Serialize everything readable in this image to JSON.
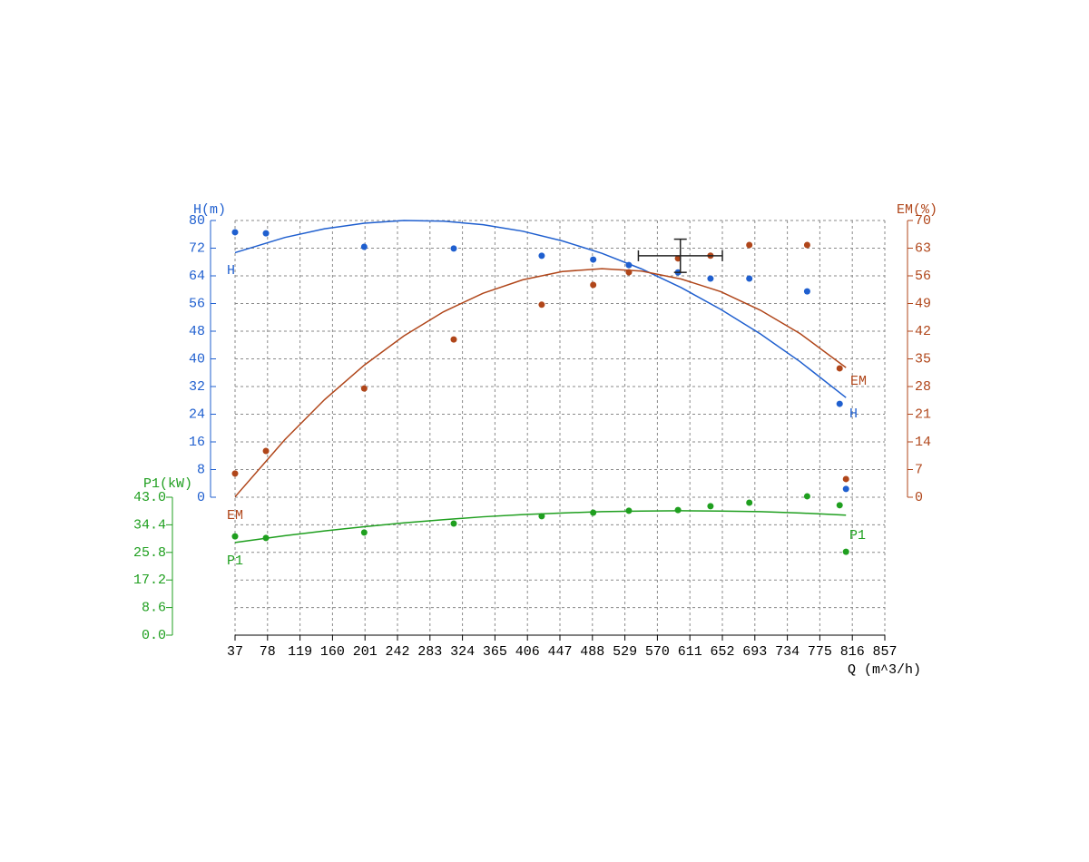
{
  "chart_data": {
    "type": "line",
    "x_label": "Q (m^3/h)",
    "y_label": "H(m)",
    "y2_label": "EM(%)",
    "y3_label": "P1(kW)",
    "xlim": [
      37,
      857
    ],
    "xticks": [
      37,
      78,
      119,
      160,
      201,
      242,
      283,
      324,
      365,
      406,
      447,
      488,
      529,
      570,
      611,
      652,
      693,
      734,
      775,
      816,
      857
    ],
    "ylim": [
      0,
      80
    ],
    "yticks": [
      0,
      8,
      16,
      24,
      32,
      40,
      48,
      56,
      64,
      72,
      80
    ],
    "y2lim": [
      0,
      70
    ],
    "y2ticks": [
      0,
      7,
      14,
      21,
      28,
      35,
      42,
      49,
      56,
      63,
      70
    ],
    "y3lim": [
      0,
      43
    ],
    "y3ticks": [
      {
        "value": 0,
        "label": "0.0"
      },
      8.6,
      17.2,
      25.8,
      34.4,
      {
        "value": 43,
        "label": "43.0"
      }
    ],
    "grid": true,
    "x": [
      37,
      76,
      200,
      313,
      424,
      489,
      534,
      596,
      637,
      686,
      759,
      800,
      808
    ],
    "fit_x": [
      37,
      100,
      150,
      200,
      250,
      300,
      350,
      400,
      450,
      500,
      550,
      600,
      650,
      700,
      750,
      808
    ],
    "series": [
      {
        "name": "H",
        "axis": "y",
        "color": "#1f5fcf",
        "values": [
          76.6,
          76.3,
          72.4,
          71.9,
          69.8,
          68.7,
          67.1,
          65.0,
          63.2,
          63.2,
          59.5,
          27.0,
          2.4
        ],
        "fit_values": [
          70.7,
          75.1,
          77.6,
          79.2,
          80.0,
          79.8,
          78.8,
          76.9,
          74.1,
          70.5,
          66.0,
          60.6,
          54.3,
          47.2,
          39.2,
          28.8
        ]
      },
      {
        "name": "EM",
        "axis": "y2",
        "color": "#b0461a",
        "values": [
          6.0,
          11.7,
          27.5,
          39.9,
          48.7,
          53.7,
          56.9,
          60.4,
          61.1,
          63.8,
          63.8,
          32.6,
          4.6
        ],
        "fit_values": [
          0.1,
          14.6,
          24.7,
          33.4,
          40.8,
          46.9,
          51.6,
          55.0,
          57.1,
          57.8,
          57.2,
          55.2,
          52.0,
          47.3,
          41.4,
          32.8
        ]
      },
      {
        "name": "P1",
        "axis": "y3",
        "color": "#1f9f1f",
        "values": [
          30.8,
          30.3,
          32.0,
          34.8,
          37.1,
          38.2,
          38.8,
          39.0,
          40.2,
          41.3,
          43.3,
          40.5,
          26.0
        ],
        "fit_values": [
          28.9,
          31.0,
          32.5,
          33.8,
          35.0,
          36.0,
          36.9,
          37.6,
          38.1,
          38.5,
          38.7,
          38.8,
          38.7,
          38.5,
          38.1,
          37.4
        ]
      }
    ],
    "operating_point": {
      "q": 599,
      "q_error": 53,
      "h": 69.8,
      "h_error": 4.8
    }
  }
}
